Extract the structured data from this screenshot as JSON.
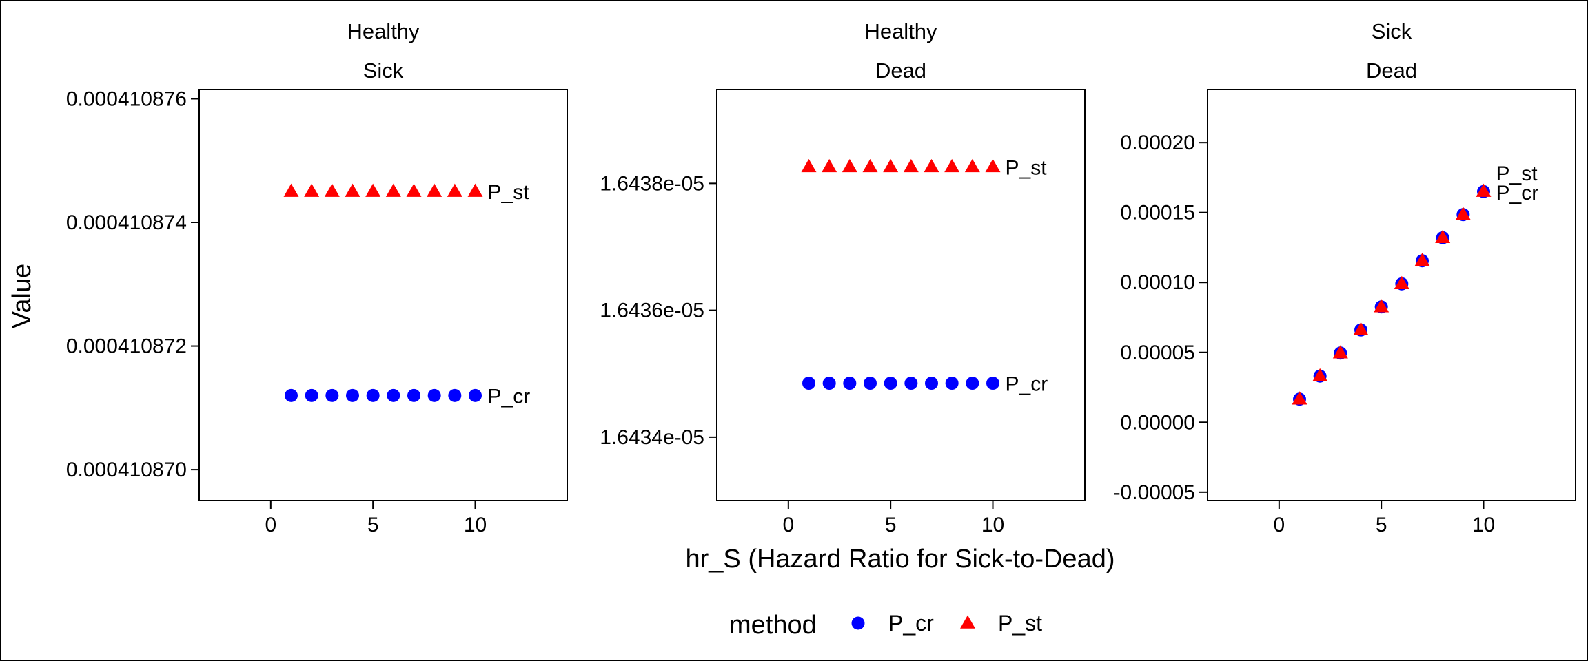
{
  "chart_data": {
    "type": "scatter",
    "xlabel": "hr_S (Hazard Ratio for Sick-to-Dead)",
    "ylabel": "Value",
    "legend": {
      "title": "method",
      "placement": "bottom",
      "entries": [
        {
          "label": "P_cr",
          "color": "#0000FF",
          "shape": "circle"
        },
        {
          "label": "P_st",
          "color": "#FF0000",
          "shape": "triangle"
        }
      ]
    },
    "x": [
      1,
      2,
      3,
      4,
      5,
      6,
      7,
      8,
      9,
      10
    ],
    "xlim": [
      -3.5,
      14.5
    ],
    "xticks": [
      0,
      5,
      10
    ],
    "xtick_labels": [
      "0",
      "5",
      "10"
    ],
    "panels": [
      {
        "strip": [
          "Healthy",
          "Sick"
        ],
        "ylim": [
          0.0004108695,
          0.00041087615
        ],
        "yticks": [
          0.00041087,
          0.000410872,
          0.000410874,
          0.000410876
        ],
        "ytick_labels": [
          "0.000410870",
          "0.000410872",
          "0.000410874",
          "0.000410876"
        ],
        "series": [
          {
            "name": "P_cr",
            "values": [
              0.0004108712,
              0.0004108712,
              0.0004108712,
              0.0004108712,
              0.0004108712,
              0.0004108712,
              0.0004108712,
              0.0004108712,
              0.0004108712,
              0.0004108712
            ]
          },
          {
            "name": "P_st",
            "values": [
              0.0004108745,
              0.0004108745,
              0.0004108745,
              0.0004108745,
              0.0004108745,
              0.0004108745,
              0.0004108745,
              0.0004108745,
              0.0004108745,
              0.0004108745
            ]
          }
        ]
      },
      {
        "strip": [
          "Healthy",
          "Dead"
        ],
        "ylim": [
          1.6433e-05,
          1.643948e-05
        ],
        "yticks": [
          1.6434e-05,
          1.6436e-05,
          1.6438e-05
        ],
        "ytick_labels": [
          "1.6434e-05",
          "1.6436e-05",
          "1.6438e-05"
        ],
        "series": [
          {
            "name": "P_cr",
            "values": [
              1.643485e-05,
              1.643485e-05,
              1.643485e-05,
              1.643485e-05,
              1.643485e-05,
              1.643485e-05,
              1.643485e-05,
              1.643485e-05,
              1.643485e-05,
              1.643485e-05
            ]
          },
          {
            "name": "P_st",
            "values": [
              1.643826e-05,
              1.643826e-05,
              1.643826e-05,
              1.643826e-05,
              1.643826e-05,
              1.643826e-05,
              1.643826e-05,
              1.643826e-05,
              1.643826e-05,
              1.643826e-05
            ]
          }
        ]
      },
      {
        "strip": [
          "Sick",
          "Dead"
        ],
        "ylim": [
          -5.6e-05,
          0.000238
        ],
        "yticks": [
          -5e-05,
          0.0,
          5e-05,
          0.0001,
          0.00015,
          0.0002
        ],
        "ytick_labels": [
          "-0.00005",
          "0.00000",
          "0.00005",
          "0.00010",
          "0.00015",
          "0.00020"
        ],
        "series": [
          {
            "name": "P_cr",
            "values": [
              1.65e-05,
              3.3e-05,
              4.95e-05,
              6.6e-05,
              8.25e-05,
              9.9e-05,
              0.0001155,
              0.000132,
              0.0001485,
              0.000165
            ]
          },
          {
            "name": "P_st",
            "values": [
              1.65e-05,
              3.3e-05,
              4.95e-05,
              6.6e-05,
              8.25e-05,
              9.9e-05,
              0.0001155,
              0.000132,
              0.0001485,
              0.000165
            ]
          }
        ]
      }
    ]
  }
}
